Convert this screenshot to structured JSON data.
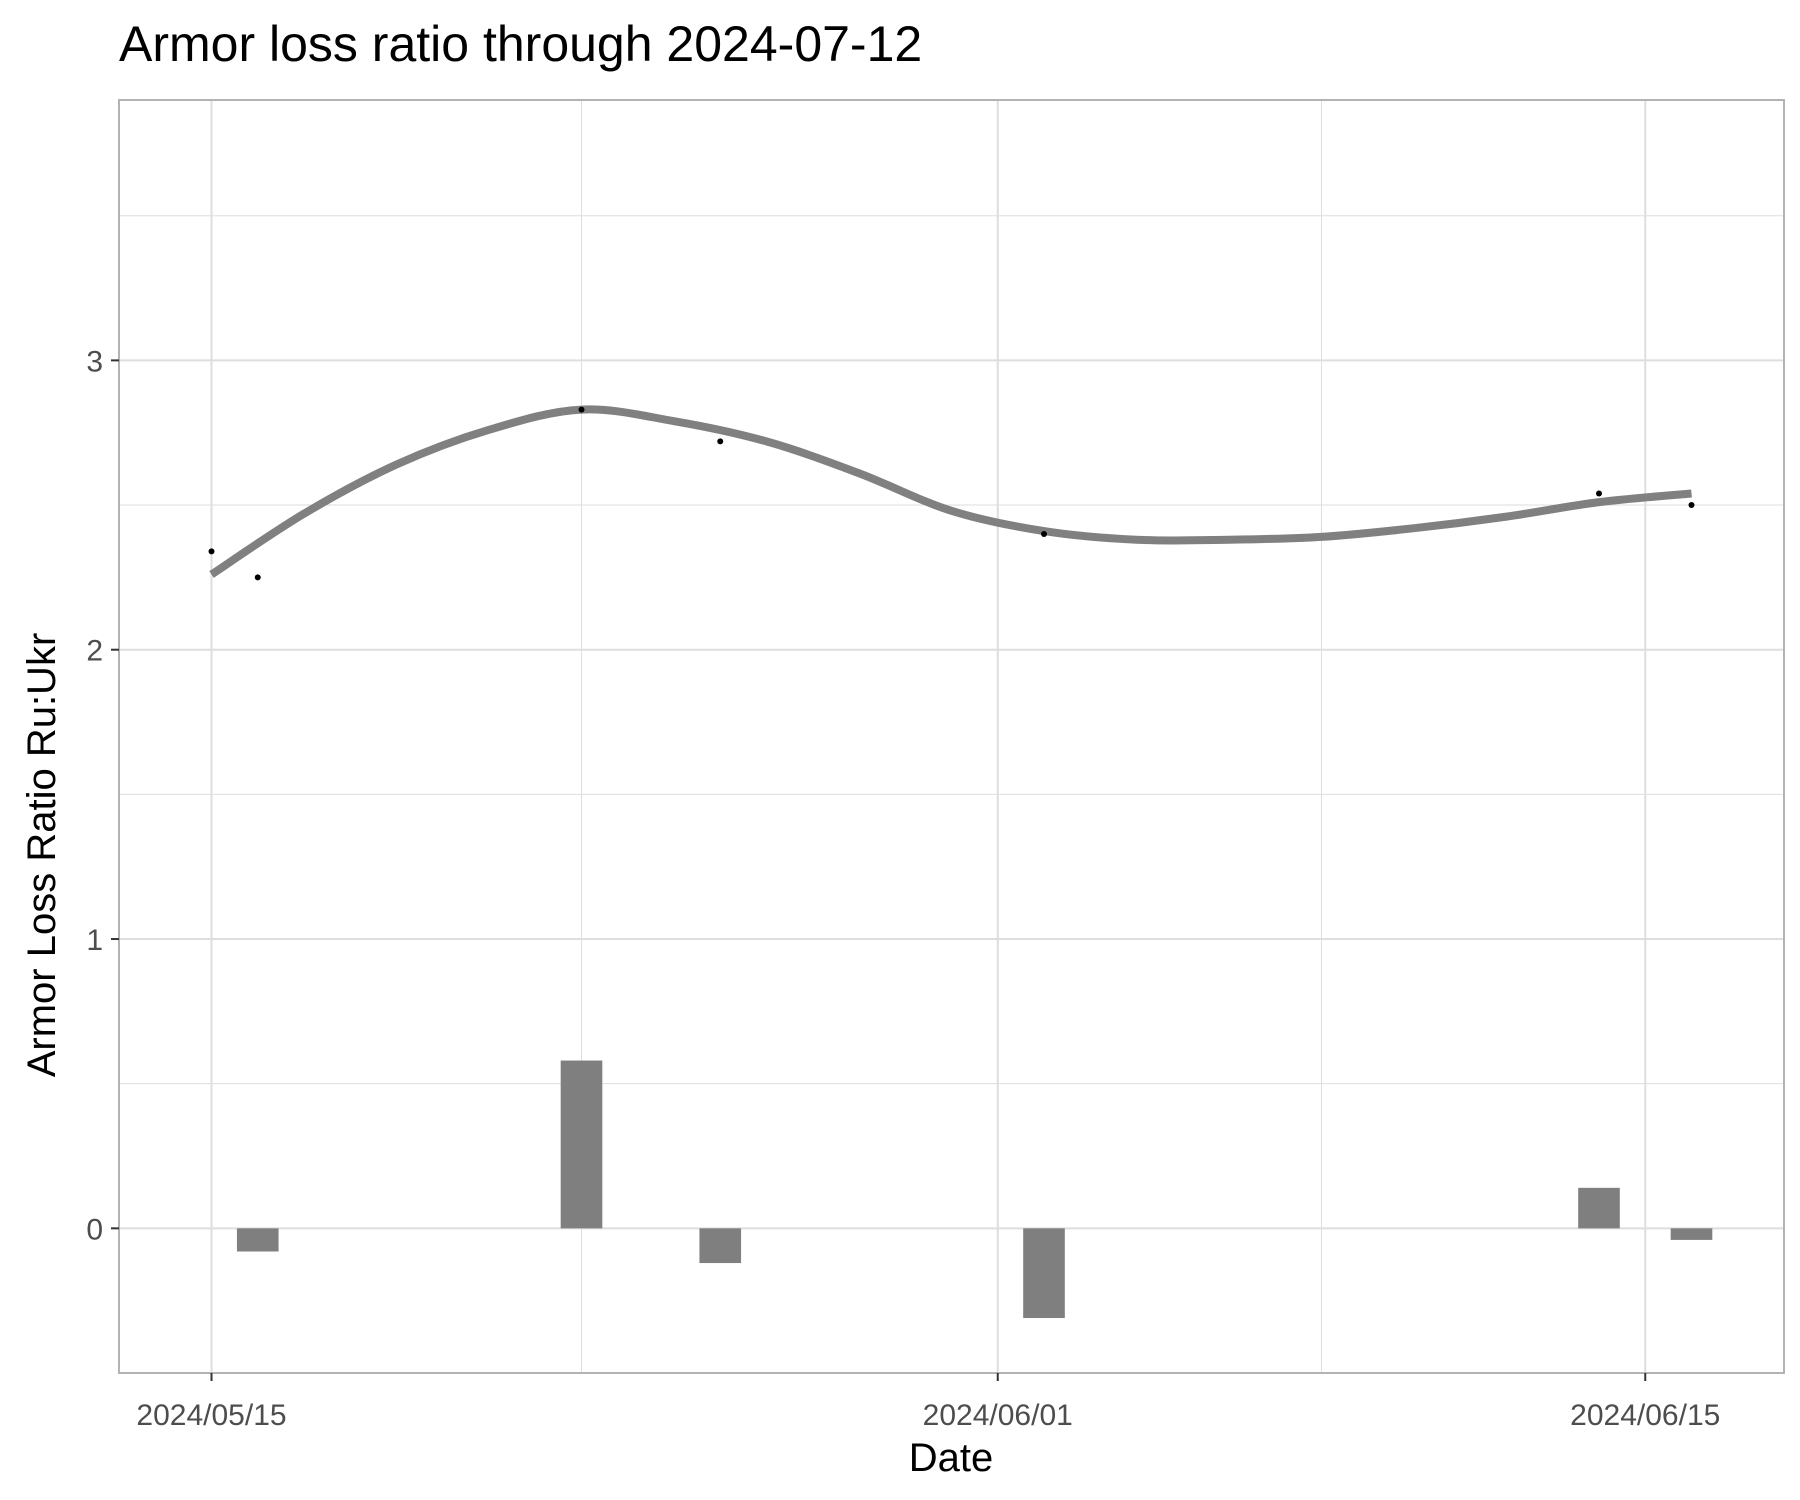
{
  "chart_data": {
    "type": "bar",
    "title": "Armor loss ratio through 2024-07-12",
    "xlabel": "Date",
    "ylabel": "Armor Loss Ratio Ru:Ukr",
    "x_tick_labels": [
      "2024/05/15",
      "2024/06/01",
      "2024/06/15"
    ],
    "y_tick_labels": [
      "0",
      "1",
      "2",
      "3"
    ],
    "xlim": [
      "2024-05-13",
      "2024-06-18"
    ],
    "ylim": [
      -0.5,
      3.9
    ],
    "grid": true,
    "points": [
      {
        "x": "2024-05-15",
        "y": 2.34
      },
      {
        "x": "2024-05-16",
        "y": 2.25
      },
      {
        "x": "2024-05-23",
        "y": 2.83
      },
      {
        "x": "2024-05-26",
        "y": 2.72
      },
      {
        "x": "2024-06-02",
        "y": 2.4
      },
      {
        "x": "2024-06-14",
        "y": 2.54
      },
      {
        "x": "2024-06-16",
        "y": 2.5
      }
    ],
    "trend": [
      {
        "x": "2024-05-15",
        "y": 2.26
      },
      {
        "x": "2024-05-17",
        "y": 2.47
      },
      {
        "x": "2024-05-19",
        "y": 2.64
      },
      {
        "x": "2024-05-21",
        "y": 2.76
      },
      {
        "x": "2024-05-23",
        "y": 2.83
      },
      {
        "x": "2024-05-25",
        "y": 2.79
      },
      {
        "x": "2024-05-27",
        "y": 2.72
      },
      {
        "x": "2024-05-29",
        "y": 2.61
      },
      {
        "x": "2024-05-31",
        "y": 2.48
      },
      {
        "x": "2024-06-02",
        "y": 2.41
      },
      {
        "x": "2024-06-04",
        "y": 2.38
      },
      {
        "x": "2024-06-06",
        "y": 2.38
      },
      {
        "x": "2024-06-08",
        "y": 2.39
      },
      {
        "x": "2024-06-10",
        "y": 2.42
      },
      {
        "x": "2024-06-12",
        "y": 2.46
      },
      {
        "x": "2024-06-14",
        "y": 2.51
      },
      {
        "x": "2024-06-16",
        "y": 2.54
      }
    ],
    "bars": [
      {
        "x": "2024-05-16",
        "value": -0.08
      },
      {
        "x": "2024-05-23",
        "value": 0.58
      },
      {
        "x": "2024-05-26",
        "value": -0.12
      },
      {
        "x": "2024-06-02",
        "value": -0.31
      },
      {
        "x": "2024-06-14",
        "value": 0.14
      },
      {
        "x": "2024-06-16",
        "value": -0.04
      }
    ],
    "colors": {
      "trend": "#808080",
      "bars": "#7f7f7f",
      "points": "#000000",
      "grid": "#dedede",
      "panel_border": "#b3b3b3"
    }
  }
}
